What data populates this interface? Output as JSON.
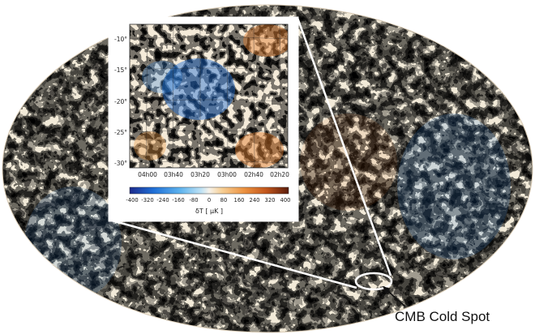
{
  "inset": {
    "y_ticks": [
      "-10°",
      "-15°",
      "-20°",
      "-25°",
      "-30°"
    ],
    "x_ticks": [
      "04h00",
      "03h40",
      "03h20",
      "03h00",
      "02h40",
      "02h20"
    ],
    "colorbar_ticks": [
      "-400",
      "-320",
      "-240",
      "-160",
      "-80",
      "0",
      "80",
      "160",
      "240",
      "320",
      "400"
    ],
    "colorbar_label": "δT [ μK ]"
  },
  "callout_label": "CMB Cold Spot",
  "colors": {
    "cold_deep": "#1f5fc8",
    "cold": "#4aa6e8",
    "cool": "#9fd2f0",
    "neutral": "#f4f0e6",
    "warm": "#f3c28a",
    "hot": "#e07a2a",
    "hot_deep": "#a8461a"
  }
}
